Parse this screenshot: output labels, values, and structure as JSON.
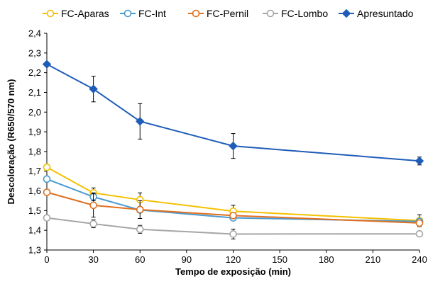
{
  "chart_data": {
    "type": "line",
    "xlabel": "Tempo de exposição (min)",
    "ylabel": "Descoloração (R650/570 nm)",
    "xlim": [
      0,
      240
    ],
    "ylim": [
      1.3,
      2.4
    ],
    "x_ticks": [
      0,
      30,
      60,
      90,
      120,
      150,
      180,
      210,
      240
    ],
    "x_tick_labels": [
      "0",
      "30",
      "60",
      "90",
      "120",
      "150",
      "180",
      "210",
      "240"
    ],
    "y_ticks": [
      1.3,
      1.4,
      1.5,
      1.6,
      1.7,
      1.8,
      1.9,
      2.0,
      2.1,
      2.2,
      2.3,
      2.4
    ],
    "y_tick_labels": [
      "1,3",
      "1,4",
      "1,5",
      "1,6",
      "1,7",
      "1,8",
      "1,9",
      "2,0",
      "2,1",
      "2,2",
      "2,3",
      "2,4"
    ],
    "grid": false,
    "legend_position": "top",
    "x": [
      0,
      30,
      60,
      120,
      240
    ],
    "series": [
      {
        "name": "FC-Aparas",
        "color": "#F5C000",
        "marker": "circle-open",
        "values": [
          1.72,
          1.59,
          1.555,
          1.497,
          1.449
        ],
        "errors": [
          0.0,
          0.025,
          0.035,
          0.03,
          0.03
        ]
      },
      {
        "name": "FC-Int",
        "color": "#4A9AD0",
        "marker": "circle-open",
        "values": [
          1.66,
          1.57,
          1.503,
          1.463,
          1.445
        ],
        "errors": [
          0.0,
          0.02,
          0.0,
          0.0,
          0.0
        ]
      },
      {
        "name": "FC-Pernil",
        "color": "#E07020",
        "marker": "circle-open",
        "values": [
          1.593,
          1.527,
          1.505,
          1.475,
          1.437
        ],
        "errors": [
          0.0,
          0.06,
          0.045,
          0.0,
          0.0
        ]
      },
      {
        "name": "FC-Lombo",
        "color": "#A6A6A6",
        "marker": "circle-open",
        "values": [
          1.463,
          1.433,
          1.405,
          1.381,
          1.382
        ],
        "errors": [
          0.0,
          0.02,
          0.02,
          0.025,
          0.0
        ]
      },
      {
        "name": "Apresuntado",
        "color": "#1F5CB8",
        "marker": "diamond-filled",
        "values": [
          2.243,
          2.117,
          1.953,
          1.828,
          1.752
        ],
        "errors": [
          0.0,
          0.065,
          0.09,
          0.063,
          0.02
        ]
      }
    ]
  }
}
